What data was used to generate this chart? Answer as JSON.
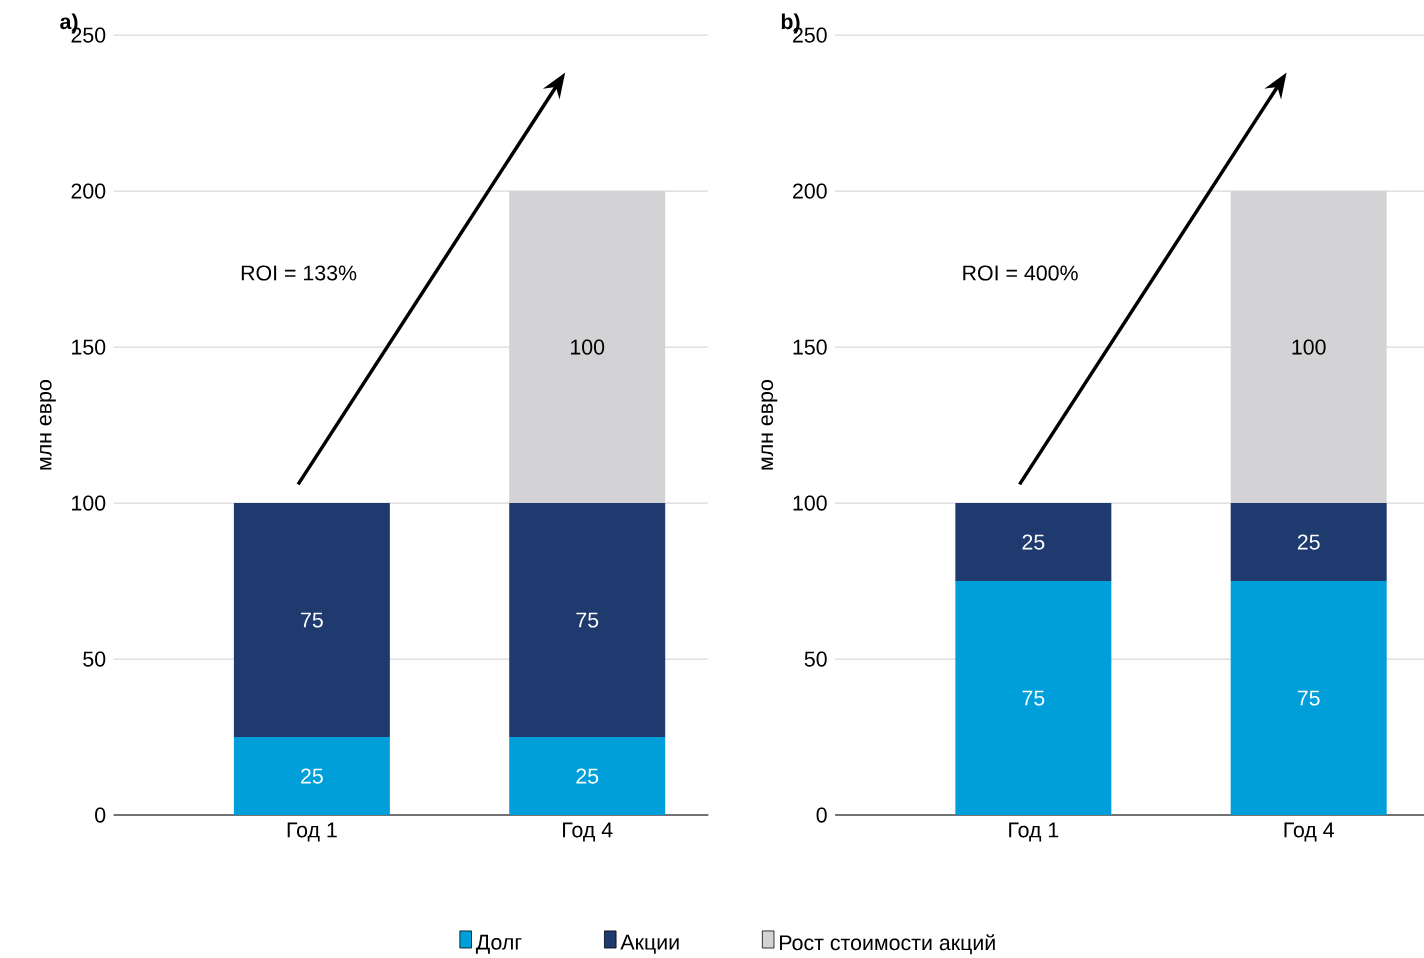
{
  "chart_data": [
    {
      "type": "bar",
      "title": "a)",
      "ylabel": "млн евро",
      "categories": [
        "Год 1",
        "Год 4"
      ],
      "stacked": true,
      "data_labels": true,
      "ylim": [
        0,
        250
      ],
      "yticks": [
        0,
        50,
        100,
        150,
        200,
        250
      ],
      "grid": "y",
      "legend": "bottom",
      "annotations": [
        "ROI = 133%"
      ],
      "series": [
        {
          "name": "Долг",
          "color": "#009fda",
          "values": [
            25,
            25
          ]
        },
        {
          "name": "Акции",
          "color": "#1f3a6e",
          "values": [
            75,
            75
          ]
        },
        {
          "name": "Рост стоимости акций",
          "color": "#d3d3d5",
          "values": [
            null,
            100
          ]
        }
      ]
    },
    {
      "type": "bar",
      "title": "b)",
      "ylabel": "млн евро",
      "categories": [
        "Год 1",
        "Год 4"
      ],
      "stacked": true,
      "data_labels": true,
      "ylim": [
        0,
        250
      ],
      "yticks": [
        0,
        50,
        100,
        150,
        200,
        250
      ],
      "grid": "y",
      "annotations": [
        "ROI = 400%"
      ],
      "series": [
        {
          "color": "#009fda",
          "values": [
            75,
            75
          ]
        },
        {
          "color": "#1f3a6e",
          "values": [
            25,
            25
          ]
        },
        {
          "color": "#d3d3d5",
          "values": [
            null,
            100
          ]
        }
      ]
    }
  ]
}
